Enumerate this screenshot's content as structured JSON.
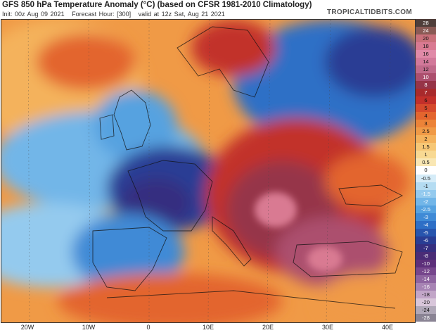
{
  "header": {
    "title": "GFS 850 hPa Temperature Anomaly (°C) (based on CFSR 1981-2010 Climatology)",
    "init": "Init: 00z Aug 09 2021",
    "forecast_hour": "Forecast Hour: [300]",
    "valid": "valid at 12z Sat, Aug 21 2021",
    "brand": "TROPICALTIDBITS.COM"
  },
  "colorbar": {
    "levels": [
      "28",
      "24",
      "20",
      "18",
      "16",
      "14",
      "12",
      "10",
      "8",
      "7",
      "6",
      "5",
      "4",
      "3",
      "2.5",
      "2",
      "1.5",
      "1",
      "0.5",
      "0",
      "-0.5",
      "-1",
      "-1.5",
      "-2",
      "-2.5",
      "-3",
      "-4",
      "-5",
      "-6",
      "-7",
      "-8",
      "-10",
      "-12",
      "-14",
      "-16",
      "-18",
      "-20",
      "-24",
      "-28"
    ],
    "colors": [
      "#4f3e3a",
      "#8a5a55",
      "#c9707a",
      "#d97a92",
      "#e08aa8",
      "#d2799a",
      "#c06a8a",
      "#ac4f6e",
      "#963448",
      "#a82a2c",
      "#c2302a",
      "#d64a2c",
      "#e3652e",
      "#ec8338",
      "#f09a46",
      "#f4b25c",
      "#f6c776",
      "#f8d992",
      "#f9e7b4",
      "#ffffff",
      "#d5ecf8",
      "#b4dcf2",
      "#94caee",
      "#72b6e8",
      "#56a2e0",
      "#3f8ad6",
      "#2e6fc6",
      "#2755ae",
      "#293d94",
      "#362f80",
      "#4a2c76",
      "#5d2f7a",
      "#76468c",
      "#8e64a0",
      "#a784b4",
      "#c2a6c8",
      "#d8c6da",
      "#b0a8b8",
      "#8a8494"
    ]
  },
  "map": {
    "projection_labels": [
      "20W",
      "10W",
      "0",
      "10E",
      "20E",
      "30E",
      "40E"
    ],
    "regions": [
      {
        "name": "atlantic-warm",
        "color": "#f4b25c"
      },
      {
        "name": "north-cold",
        "color": "#2e6fc6"
      },
      {
        "name": "france-cold",
        "color": "#293d94"
      },
      {
        "name": "iberia-cold",
        "color": "#3f8ad6"
      },
      {
        "name": "eastern-europe-hot",
        "color": "#c2302a"
      },
      {
        "name": "balkans-hot",
        "color": "#963448"
      },
      {
        "name": "turkey-hot",
        "color": "#ac4f6e"
      },
      {
        "name": "north-africa-warm",
        "color": "#e3652e"
      }
    ]
  }
}
